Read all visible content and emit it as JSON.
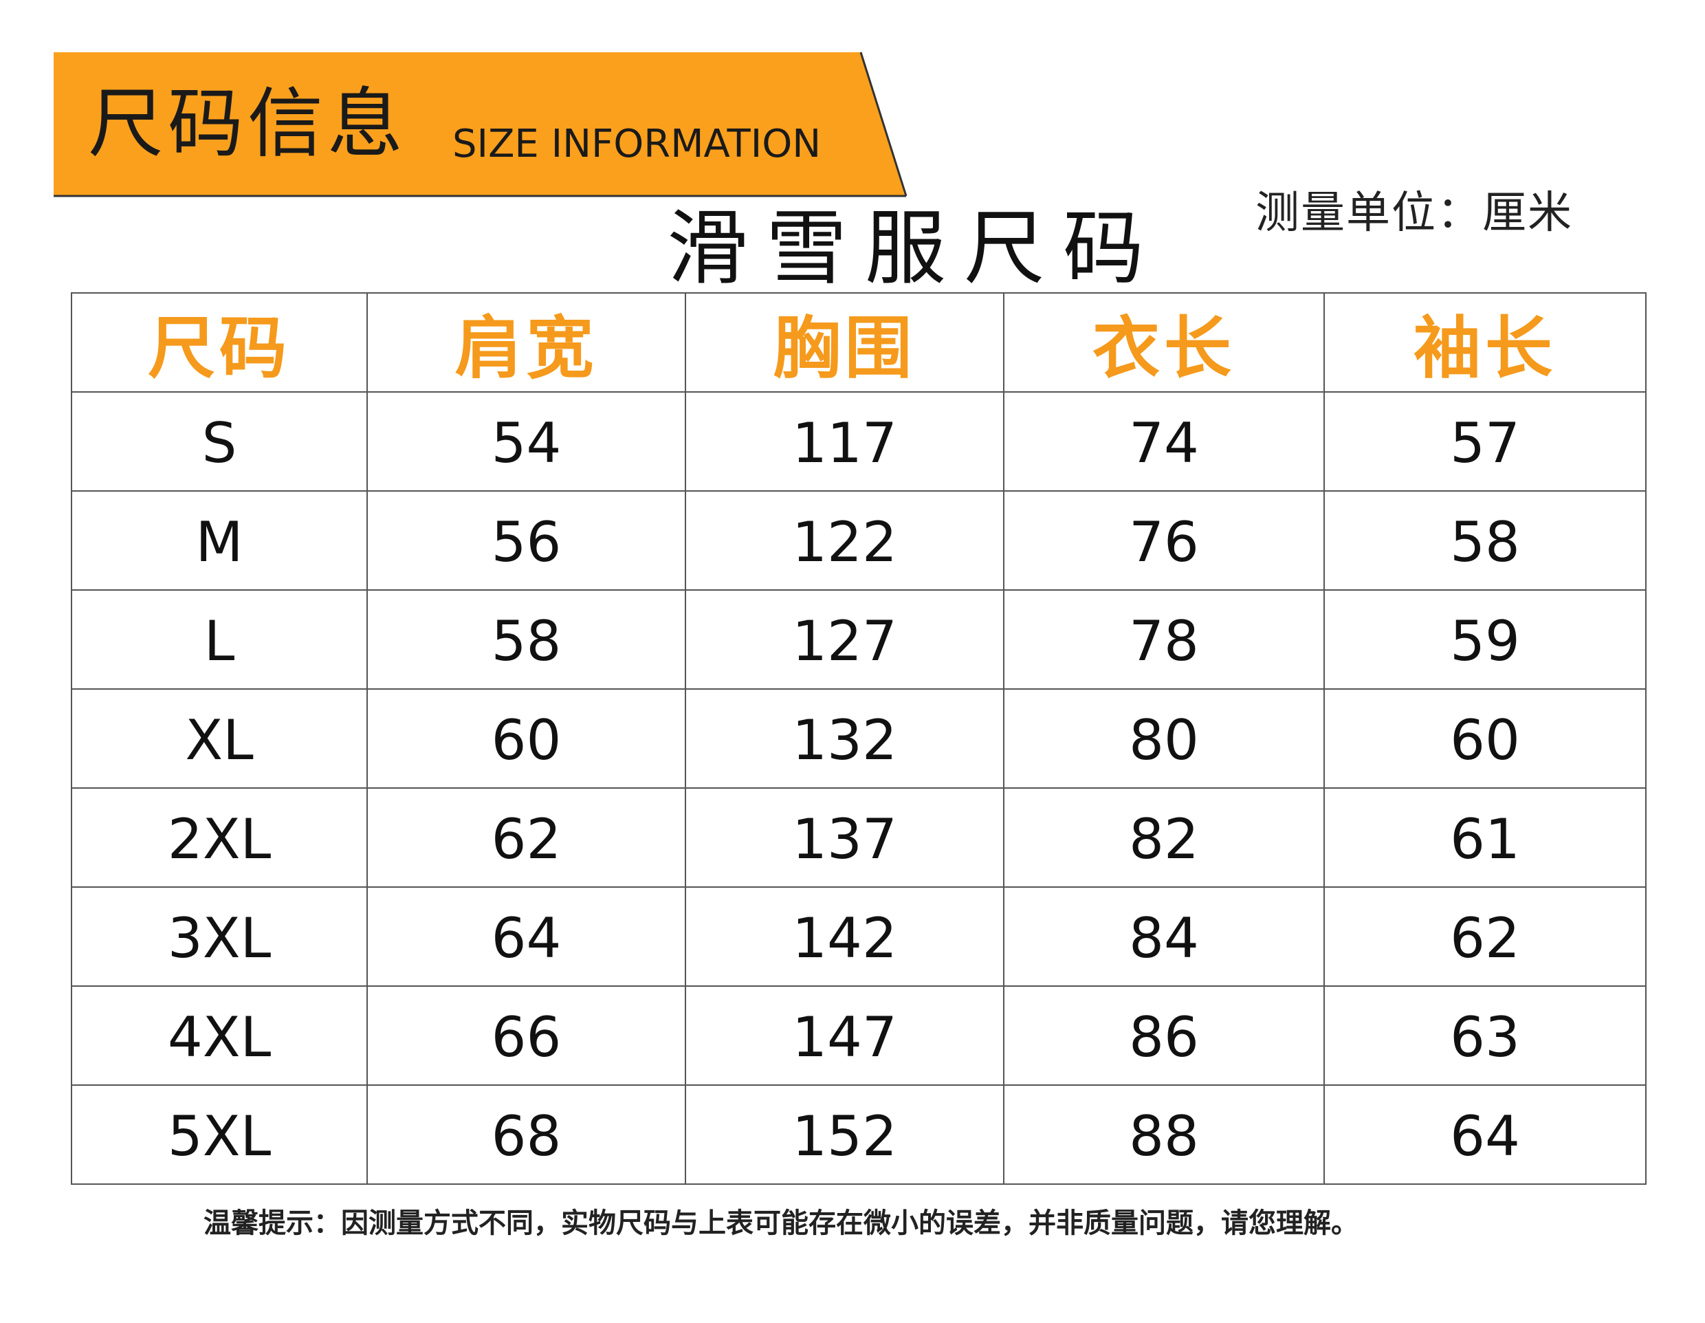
{
  "colors": {
    "banner": "#fba01c",
    "header_text": "#f59a1c",
    "border": "#555555",
    "text": "#111111"
  },
  "banner": {
    "title": "尺码信息",
    "subtitle": "SIZE INFORMATION"
  },
  "chart_title": "滑雪服尺码",
  "unit_note": "测量单位：厘米",
  "table": {
    "headers": [
      "尺码",
      "肩宽",
      "胸围",
      "衣长",
      "袖长"
    ],
    "rows": [
      [
        "S",
        "54",
        "117",
        "74",
        "57"
      ],
      [
        "M",
        "56",
        "122",
        "76",
        "58"
      ],
      [
        "L",
        "58",
        "127",
        "78",
        "59"
      ],
      [
        "XL",
        "60",
        "132",
        "80",
        "60"
      ],
      [
        "2XL",
        "62",
        "137",
        "82",
        "61"
      ],
      [
        "3XL",
        "64",
        "142",
        "84",
        "62"
      ],
      [
        "4XL",
        "66",
        "147",
        "86",
        "63"
      ],
      [
        "5XL",
        "68",
        "152",
        "88",
        "64"
      ]
    ]
  },
  "footnote": "温馨提示：因测量方式不同，实物尺码与上表可能存在微小的误差，并非质量问题，请您理解。"
}
